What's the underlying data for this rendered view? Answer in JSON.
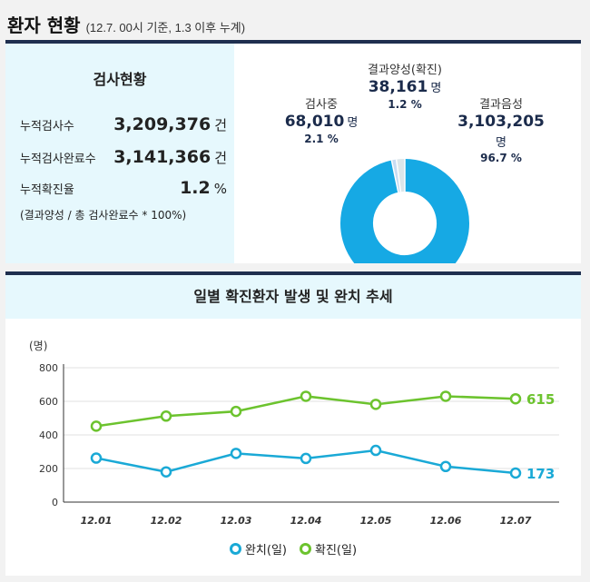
{
  "header": {
    "title": "환자 현황",
    "subtitle": "(12.7. 00시 기준, 1.3 이후 누계)"
  },
  "stats": {
    "title": "검사현황",
    "rows": [
      {
        "label": "누적검사수",
        "value": "3,209,376",
        "unit": "건"
      },
      {
        "label": "누적검사완료수",
        "value": "3,141,366",
        "unit": "건"
      },
      {
        "label": "누적확진율",
        "value": "1.2",
        "unit": "%"
      }
    ],
    "note": "(결과양성 / 총 검사완료수 * 100%)"
  },
  "donut": {
    "segments": [
      {
        "name": "결과양성(확진)",
        "value": "38,161",
        "unit": "명",
        "percent": "1.2 %",
        "share": 1.2,
        "color": "#c8dcf2"
      },
      {
        "name": "검사중",
        "value": "68,010",
        "unit": "명",
        "percent": "2.1 %",
        "share": 2.1,
        "color": "#dce6ea"
      },
      {
        "name": "결과음성",
        "value": "3,103,205",
        "unit": "명",
        "percent": "96.7 %",
        "share": 96.7,
        "color": "#16a9e4"
      }
    ]
  },
  "trend": {
    "title": "일별 확진환자 발생 및 완치 추세",
    "yunit": "(명)",
    "legend": [
      "완치(일)",
      "확진(일)"
    ]
  },
  "chart_data": {
    "type": "line",
    "title": "일별 확진환자 발생 및 완치 추세",
    "ylabel": "(명)",
    "categories": [
      "12.01",
      "12.02",
      "12.03",
      "12.04",
      "12.05",
      "12.06",
      "12.07"
    ],
    "ylim": [
      0,
      800
    ],
    "yticks": [
      0,
      200,
      400,
      600,
      800
    ],
    "grid": true,
    "series": [
      {
        "name": "완치(일)",
        "color": "#1aa9d6",
        "values": [
          262,
          180,
          290,
          260,
          308,
          212,
          173
        ]
      },
      {
        "name": "확진(일)",
        "color": "#6cc32e",
        "values": [
          452,
          512,
          540,
          630,
          582,
          630,
          615
        ]
      }
    ],
    "end_labels": [
      "173",
      "615"
    ]
  }
}
